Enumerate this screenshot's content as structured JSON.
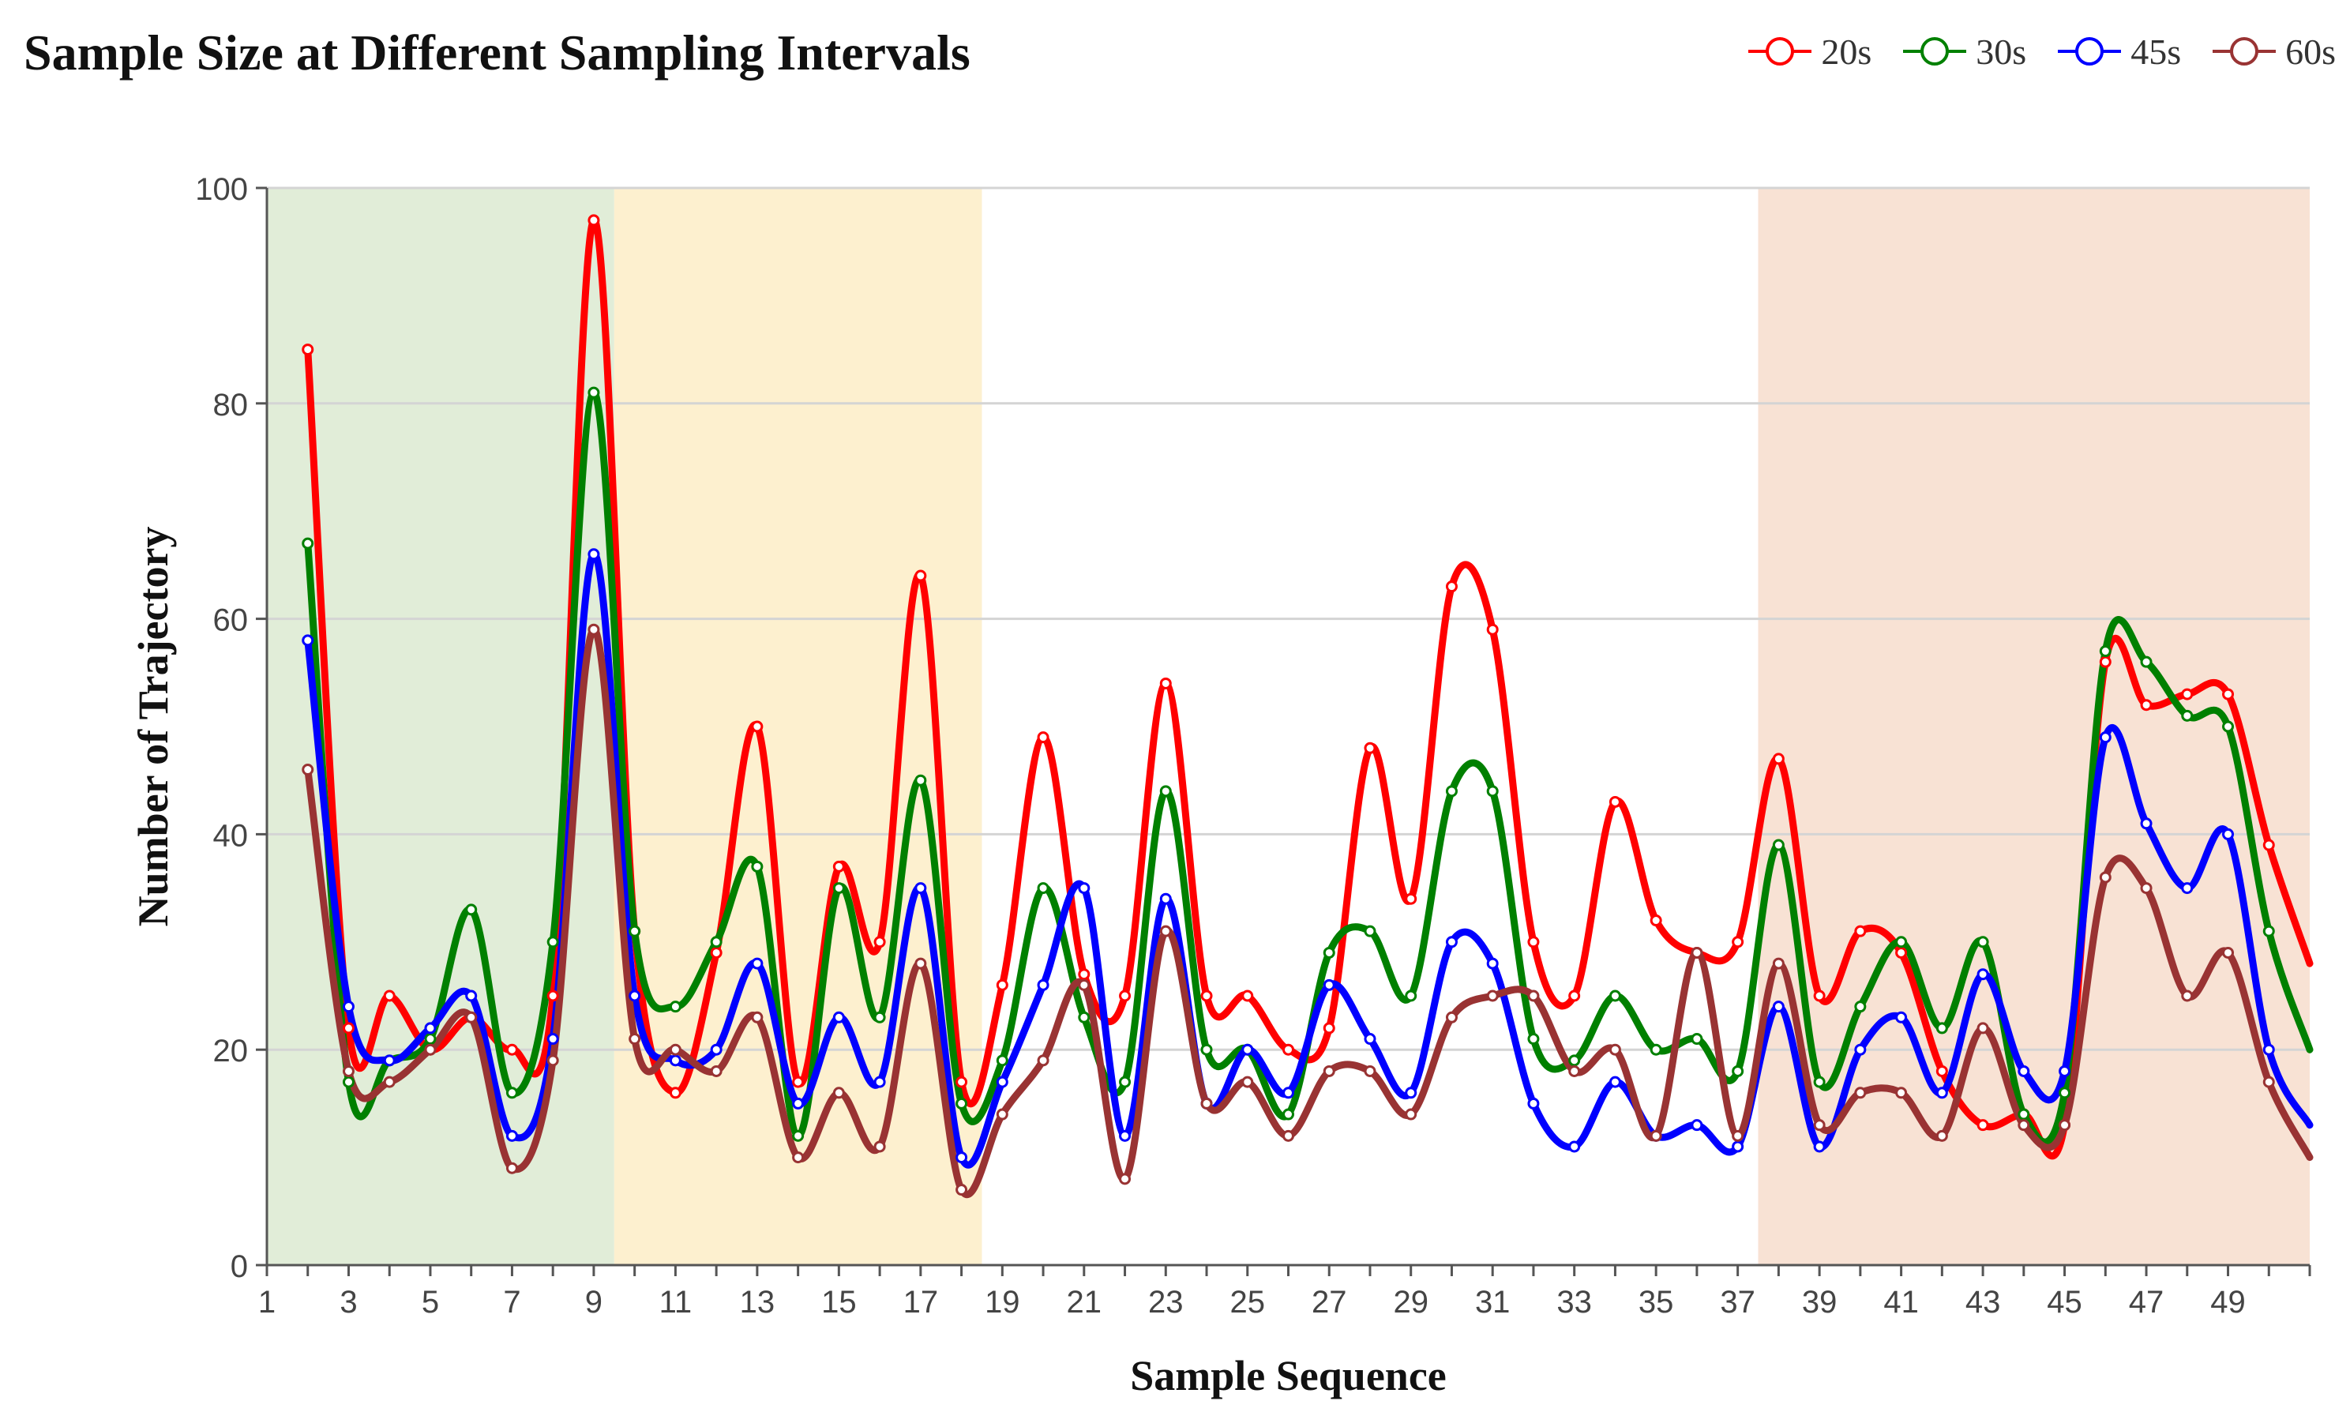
{
  "chart_data": {
    "type": "line",
    "title": "Sample Size at Different Sampling Intervals",
    "xlabel": "Sample Sequence",
    "ylabel": "Number of Trajectory",
    "ylim": [
      0,
      100
    ],
    "yticks": [
      0,
      20,
      40,
      60,
      80,
      100
    ],
    "xlim": [
      1,
      51
    ],
    "xticks": [
      1,
      3,
      5,
      7,
      9,
      11,
      13,
      15,
      17,
      19,
      21,
      23,
      25,
      27,
      29,
      31,
      33,
      35,
      37,
      39,
      41,
      43,
      45,
      47,
      49
    ],
    "grid": true,
    "legend_position": "top-right",
    "bands": [
      {
        "from": 1,
        "to": 9.5,
        "color": "#e1edd8"
      },
      {
        "from": 9.5,
        "to": 18.5,
        "color": "#fdf0cf"
      },
      {
        "from": 37.5,
        "to": 51,
        "color": "#f8e2d4"
      }
    ],
    "x": [
      2,
      3,
      4,
      5,
      6,
      7,
      8,
      9,
      10,
      11,
      12,
      13,
      14,
      15,
      16,
      17,
      18,
      19,
      20,
      21,
      22,
      23,
      24,
      25,
      26,
      27,
      28,
      29,
      30,
      31,
      32,
      33,
      34,
      35,
      36,
      37,
      38,
      39,
      40,
      41,
      42,
      43,
      44,
      45,
      46,
      47,
      48,
      49,
      50,
      51
    ],
    "series": [
      {
        "name": "20s",
        "color": "#ff0000",
        "values": [
          85,
          22,
          25,
          20,
          23,
          20,
          25,
          97,
          31,
          16,
          29,
          50,
          17,
          37,
          30,
          64,
          17,
          26,
          49,
          27,
          25,
          54,
          25,
          25,
          20,
          22,
          48,
          34,
          63,
          59,
          30,
          25,
          43,
          32,
          29,
          30,
          47,
          25,
          31,
          29,
          18,
          13,
          14,
          13,
          56,
          52,
          53,
          53,
          39,
          28
        ]
      },
      {
        "name": "30s",
        "color": "#008000",
        "values": [
          67,
          17,
          19,
          21,
          33,
          16,
          30,
          81,
          31,
          24,
          30,
          37,
          12,
          35,
          23,
          45,
          15,
          19,
          35,
          23,
          17,
          44,
          20,
          20,
          14,
          29,
          31,
          25,
          44,
          44,
          21,
          19,
          25,
          20,
          21,
          18,
          39,
          17,
          24,
          30,
          22,
          30,
          14,
          16,
          57,
          56,
          51,
          50,
          31,
          20
        ]
      },
      {
        "name": "45s",
        "color": "#0000ff",
        "values": [
          58,
          24,
          19,
          22,
          25,
          12,
          21,
          66,
          25,
          19,
          20,
          28,
          15,
          23,
          17,
          35,
          10,
          17,
          26,
          35,
          12,
          34,
          15,
          20,
          16,
          26,
          21,
          16,
          30,
          28,
          15,
          11,
          17,
          12,
          13,
          11,
          24,
          11,
          20,
          23,
          16,
          27,
          18,
          18,
          49,
          41,
          35,
          40,
          20,
          13
        ]
      },
      {
        "name": "60s",
        "color": "#993333",
        "values": [
          46,
          18,
          17,
          20,
          23,
          9,
          19,
          59,
          21,
          20,
          18,
          23,
          10,
          16,
          11,
          28,
          7,
          14,
          19,
          26,
          8,
          31,
          15,
          17,
          12,
          18,
          18,
          14,
          23,
          25,
          25,
          18,
          20,
          12,
          29,
          12,
          28,
          13,
          16,
          16,
          12,
          22,
          13,
          13,
          36,
          35,
          25,
          29,
          17,
          10
        ]
      }
    ]
  }
}
